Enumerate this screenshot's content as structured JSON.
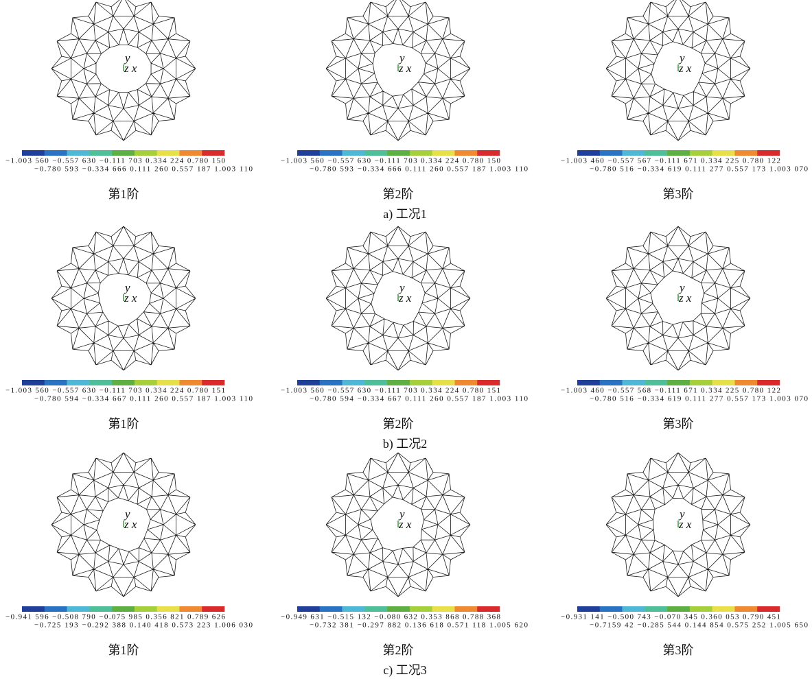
{
  "figure": {
    "groups": [
      {
        "caption": "a) 工况1",
        "panels": [
          {
            "axis_y": "y",
            "axis_zx": "z x",
            "legend_top": "−1.003 560 −0.557 630 −0.111 703 0.334 224 0.780 150",
            "legend_bottom": "−0.780 593 −0.334 666 0.111 260 0.557 187 1.003 110",
            "order": "第1阶"
          },
          {
            "axis_y": "y",
            "axis_zx": "z x",
            "legend_top": "−1.003 560 −0.557 630 −0.111 703 0.334 224 0.780 150",
            "legend_bottom": "−0.780 593 −0.334 666 0.111 260 0.557 187 1.003 110",
            "order": "第2阶"
          },
          {
            "axis_y": "y",
            "axis_zx": "z x",
            "legend_top": "−1.003 460 −0.557 567 −0.111 671 0.334 225 0.780 122",
            "legend_bottom": "−0.780 516 −0.334 619 0.111 277 0.557 173 1.003 070",
            "order": "第3阶"
          }
        ]
      },
      {
        "caption": "b) 工况2",
        "panels": [
          {
            "axis_y": "y",
            "axis_zx": "z x",
            "legend_top": "−1.003 560 −0.557 630 −0.111 703 0.334 224 0.780 151",
            "legend_bottom": "−0.780 594 −0.334 667 0.111 260 0.557 187 1.003 110",
            "order": "第1阶"
          },
          {
            "axis_y": "y",
            "axis_zx": "z x",
            "legend_top": "−1.003 560 −0.557 630 −0.111 703 0.334 224 0.780 151",
            "legend_bottom": "−0.780 594 −0.334 667 0.111 260 0.557 187 1.003 110",
            "order": "第2阶"
          },
          {
            "axis_y": "y",
            "axis_zx": "z x",
            "legend_top": "−1.003 460 −0.557 568 −0.111 671 0.334 225 0.780 122",
            "legend_bottom": "−0.780 516 −0.334 619 0.111 277 0.557 173 1.003 070",
            "order": "第3阶"
          }
        ]
      },
      {
        "caption": "c) 工况3",
        "panels": [
          {
            "axis_y": "y",
            "axis_zx": "z x",
            "legend_top": "−0.941 596 −0.508 790 −0.075 985 0.356 821 0.789 626",
            "legend_bottom": "−0.725 193 −0.292 388 0.140 418 0.573 223 1.006 030",
            "order": "第1阶"
          },
          {
            "axis_y": "y",
            "axis_zx": "z x",
            "legend_top": "−0.949 631 −0.515 132 −0.080 632 0.353 868 0.788 368",
            "legend_bottom": "−0.732 381 −0.297 882 0.136 618 0.571 118 1.005 620",
            "order": "第2阶"
          },
          {
            "axis_y": "y",
            "axis_zx": "z x",
            "legend_top": "−0.931 141 −0.500 743 −0.070 345 0.360 053 0.790 451",
            "legend_bottom": "−0.7159 42 −0.285 544 0.144 854 0.575 252 1.005 650",
            "order": "第3阶"
          }
        ]
      }
    ]
  }
}
